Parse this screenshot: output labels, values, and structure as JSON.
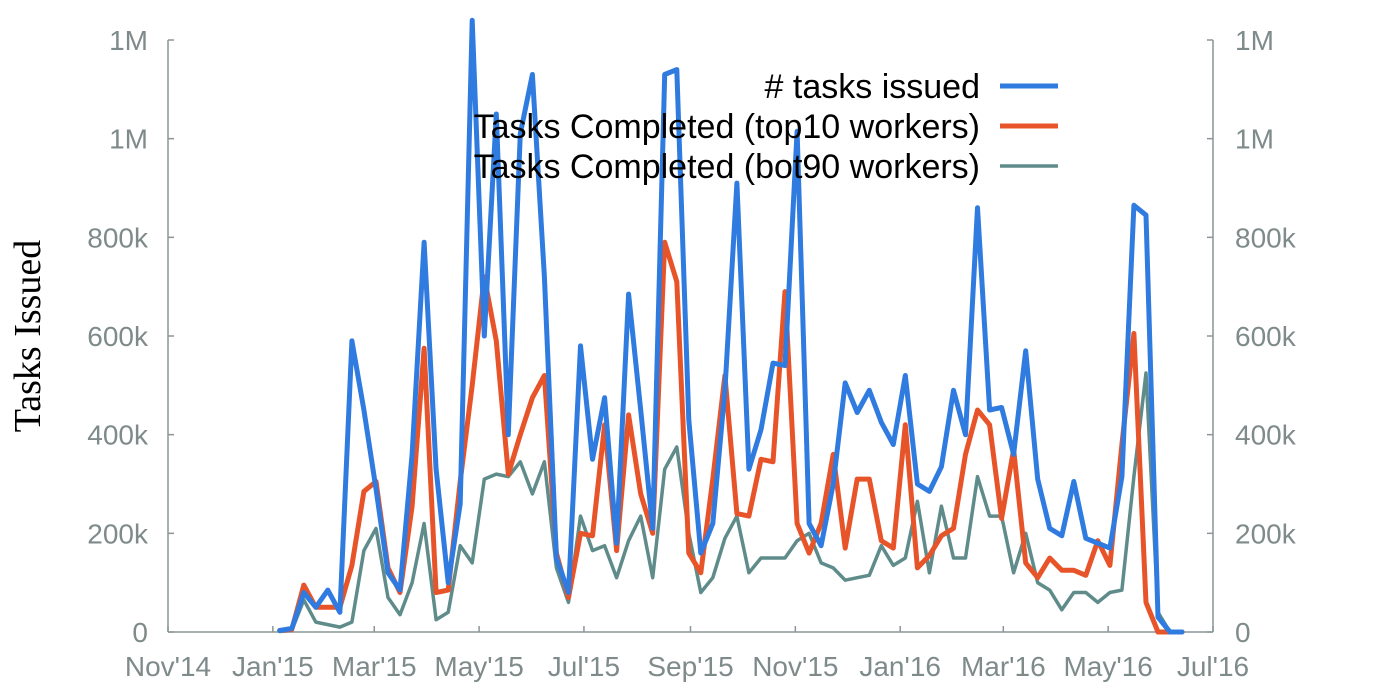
{
  "chart_data": {
    "type": "line",
    "ylabel": "Tasks Issued",
    "xlabel": "",
    "ylim": [
      0,
      1200000
    ],
    "grid": false,
    "legend_position": "top-right",
    "y_ticks": [
      {
        "value": 0,
        "label": "0"
      },
      {
        "value": 200000,
        "label": "200k"
      },
      {
        "value": 400000,
        "label": "400k"
      },
      {
        "value": 600000,
        "label": "600k"
      },
      {
        "value": 800000,
        "label": "800k"
      },
      {
        "value": 1000000,
        "label": "1M"
      },
      {
        "value": 1200000,
        "label": "1M"
      }
    ],
    "x_ticks": [
      {
        "value": "2014-11-01",
        "label": "Nov'14"
      },
      {
        "value": "2015-01-01",
        "label": "Jan'15"
      },
      {
        "value": "2015-03-01",
        "label": "Mar'15"
      },
      {
        "value": "2015-05-01",
        "label": "May'15"
      },
      {
        "value": "2015-07-01",
        "label": "Jul'15"
      },
      {
        "value": "2015-09-01",
        "label": "Sep'15"
      },
      {
        "value": "2015-11-01",
        "label": "Nov'15"
      },
      {
        "value": "2016-01-01",
        "label": "Jan'16"
      },
      {
        "value": "2016-03-01",
        "label": "Mar'16"
      },
      {
        "value": "2016-05-01",
        "label": "May'16"
      },
      {
        "value": "2016-07-01",
        "label": "Jul'16"
      }
    ],
    "xlim": [
      "2014-11-01",
      "2016-07-01"
    ],
    "x": [
      "2015-01-05",
      "2015-01-12",
      "2015-01-19",
      "2015-01-26",
      "2015-02-02",
      "2015-02-09",
      "2015-02-16",
      "2015-02-23",
      "2015-03-02",
      "2015-03-09",
      "2015-03-16",
      "2015-03-23",
      "2015-03-30",
      "2015-04-06",
      "2015-04-13",
      "2015-04-20",
      "2015-04-27",
      "2015-05-04",
      "2015-05-11",
      "2015-05-18",
      "2015-05-25",
      "2015-06-01",
      "2015-06-08",
      "2015-06-15",
      "2015-06-22",
      "2015-06-29",
      "2015-07-06",
      "2015-07-13",
      "2015-07-20",
      "2015-07-27",
      "2015-08-03",
      "2015-08-10",
      "2015-08-17",
      "2015-08-24",
      "2015-08-31",
      "2015-09-07",
      "2015-09-14",
      "2015-09-21",
      "2015-09-28",
      "2015-10-05",
      "2015-10-12",
      "2015-10-19",
      "2015-10-26",
      "2015-11-02",
      "2015-11-09",
      "2015-11-16",
      "2015-11-23",
      "2015-11-30",
      "2015-12-07",
      "2015-12-14",
      "2015-12-21",
      "2015-12-28",
      "2016-01-04",
      "2016-01-11",
      "2016-01-18",
      "2016-01-25",
      "2016-02-01",
      "2016-02-08",
      "2016-02-15",
      "2016-02-22",
      "2016-02-29",
      "2016-03-07",
      "2016-03-14",
      "2016-03-21",
      "2016-03-28",
      "2016-04-04",
      "2016-04-11",
      "2016-04-18",
      "2016-04-25",
      "2016-05-02",
      "2016-05-09",
      "2016-05-16",
      "2016-05-23",
      "2016-05-30",
      "2016-06-06",
      "2016-06-13"
    ],
    "series": [
      {
        "name": "# tasks issued",
        "color": "#2f7be0",
        "values": [
          3000,
          7000,
          80000,
          50000,
          85000,
          40000,
          590000,
          450000,
          290000,
          120000,
          85000,
          360000,
          790000,
          330000,
          100000,
          260000,
          1240000,
          600000,
          1050000,
          400000,
          1010000,
          1130000,
          720000,
          150000,
          80000,
          580000,
          350000,
          475000,
          180000,
          685000,
          450000,
          210000,
          1130000,
          1140000,
          430000,
          160000,
          220000,
          490000,
          910000,
          330000,
          410000,
          545000,
          540000,
          1015000,
          220000,
          175000,
          300000,
          505000,
          445000,
          490000,
          425000,
          380000,
          520000,
          300000,
          285000,
          335000,
          490000,
          400000,
          860000,
          450000,
          455000,
          360000,
          570000,
          310000,
          210000,
          195000,
          305000,
          190000,
          180000,
          170000,
          315000,
          865000,
          845000,
          30000,
          0,
          0
        ]
      },
      {
        "name": "Tasks Completed (top10 workers)",
        "color": "#e8542a",
        "values": [
          3000,
          5000,
          95000,
          50000,
          50000,
          50000,
          135000,
          285000,
          305000,
          130000,
          80000,
          255000,
          575000,
          80000,
          85000,
          305000,
          500000,
          720000,
          590000,
          320000,
          400000,
          475000,
          520000,
          160000,
          70000,
          200000,
          195000,
          420000,
          165000,
          440000,
          280000,
          200000,
          790000,
          710000,
          160000,
          120000,
          310000,
          520000,
          240000,
          235000,
          350000,
          345000,
          690000,
          220000,
          160000,
          220000,
          360000,
          170000,
          310000,
          310000,
          185000,
          170000,
          420000,
          130000,
          155000,
          195000,
          210000,
          360000,
          450000,
          420000,
          230000,
          370000,
          140000,
          110000,
          150000,
          125000,
          125000,
          115000,
          185000,
          135000,
          380000,
          605000,
          60000,
          0,
          0,
          0
        ]
      },
      {
        "name": "Tasks Completed (bot90 workers)",
        "color": "#5f8c8a",
        "values": [
          1000,
          3000,
          65000,
          20000,
          15000,
          10000,
          20000,
          165000,
          210000,
          70000,
          35000,
          100000,
          220000,
          25000,
          40000,
          175000,
          140000,
          310000,
          320000,
          315000,
          345000,
          280000,
          345000,
          130000,
          60000,
          235000,
          165000,
          175000,
          110000,
          185000,
          235000,
          110000,
          330000,
          375000,
          200000,
          80000,
          110000,
          190000,
          235000,
          120000,
          150000,
          150000,
          150000,
          185000,
          200000,
          140000,
          130000,
          105000,
          110000,
          115000,
          175000,
          135000,
          150000,
          265000,
          120000,
          255000,
          150000,
          150000,
          315000,
          235000,
          235000,
          120000,
          200000,
          100000,
          85000,
          45000,
          80000,
          80000,
          60000,
          80000,
          85000,
          315000,
          525000,
          40000,
          0,
          0
        ]
      }
    ]
  }
}
